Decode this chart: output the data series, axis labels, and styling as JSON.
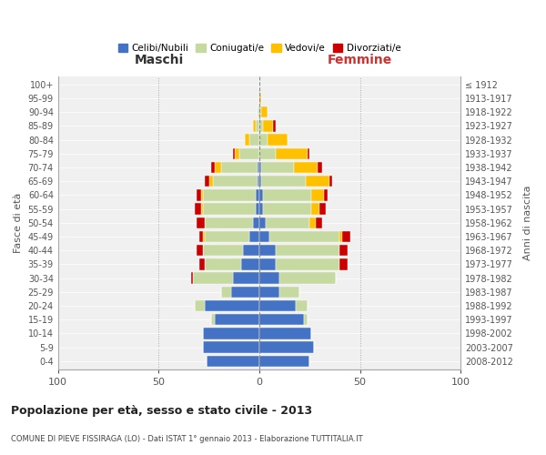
{
  "age_groups": [
    "0-4",
    "5-9",
    "10-14",
    "15-19",
    "20-24",
    "25-29",
    "30-34",
    "35-39",
    "40-44",
    "45-49",
    "50-54",
    "55-59",
    "60-64",
    "65-69",
    "70-74",
    "75-79",
    "80-84",
    "85-89",
    "90-94",
    "95-99",
    "100+"
  ],
  "birth_years": [
    "2008-2012",
    "2003-2007",
    "1998-2002",
    "1993-1997",
    "1988-1992",
    "1983-1987",
    "1978-1982",
    "1973-1977",
    "1968-1972",
    "1963-1967",
    "1958-1962",
    "1953-1957",
    "1948-1952",
    "1943-1947",
    "1938-1942",
    "1933-1937",
    "1928-1932",
    "1923-1927",
    "1918-1922",
    "1913-1917",
    "≤ 1912"
  ],
  "males": {
    "celibi": [
      26,
      28,
      28,
      22,
      27,
      14,
      13,
      9,
      8,
      5,
      3,
      2,
      2,
      1,
      1,
      0,
      0,
      0,
      0,
      0,
      0
    ],
    "coniugati": [
      0,
      0,
      0,
      2,
      5,
      5,
      20,
      18,
      20,
      22,
      24,
      26,
      26,
      22,
      18,
      10,
      5,
      2,
      1,
      0,
      0
    ],
    "vedovi": [
      0,
      0,
      0,
      0,
      0,
      0,
      0,
      0,
      0,
      1,
      0,
      1,
      1,
      2,
      3,
      2,
      2,
      1,
      0,
      0,
      0
    ],
    "divorziati": [
      0,
      0,
      0,
      0,
      0,
      0,
      1,
      3,
      3,
      2,
      4,
      3,
      2,
      2,
      2,
      1,
      0,
      0,
      0,
      0,
      0
    ]
  },
  "females": {
    "nubili": [
      25,
      27,
      26,
      22,
      18,
      10,
      10,
      8,
      8,
      5,
      3,
      2,
      2,
      1,
      1,
      0,
      0,
      0,
      0,
      0,
      0
    ],
    "coniugate": [
      0,
      0,
      0,
      2,
      6,
      10,
      28,
      32,
      32,
      35,
      22,
      24,
      24,
      22,
      16,
      8,
      4,
      2,
      1,
      0,
      0
    ],
    "vedove": [
      0,
      0,
      0,
      0,
      0,
      0,
      0,
      0,
      0,
      1,
      3,
      4,
      6,
      12,
      12,
      16,
      10,
      5,
      3,
      1,
      0
    ],
    "divorziate": [
      0,
      0,
      0,
      0,
      0,
      0,
      0,
      4,
      4,
      4,
      3,
      3,
      2,
      1,
      2,
      1,
      0,
      1,
      0,
      0,
      0
    ]
  },
  "colors": {
    "celibi": "#4472c4",
    "coniugati": "#c5d9a0",
    "vedovi": "#ffc000",
    "divorziati": "#cc0000"
  },
  "legend_labels": [
    "Celibi/Nubili",
    "Coniugati/e",
    "Vedovi/e",
    "Divorziati/e"
  ],
  "title": "Popolazione per età, sesso e stato civile - 2013",
  "subtitle": "COMUNE DI PIEVE FISSIRAGA (LO) - Dati ISTAT 1° gennaio 2013 - Elaborazione TUTTITALIA.IT",
  "xlabel_left": "Maschi",
  "xlabel_right": "Femmine",
  "ylabel_left": "Fasce di età",
  "ylabel_right": "Anni di nascita",
  "xlim": 100,
  "bg_color": "#f0f0f0"
}
